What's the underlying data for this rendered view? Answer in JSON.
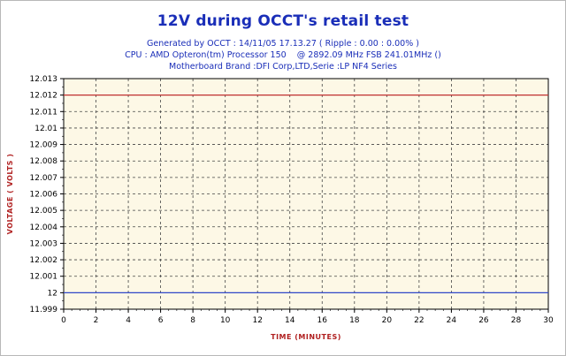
{
  "chart_data": {
    "type": "line",
    "title": "12V during OCCT's retail test",
    "subtitle_lines": [
      "Generated by OCCT : 14/11/05 17.13.27 ( Ripple : 0.00 : 0.00% )",
      "CPU : AMD Opteron(tm) Processor 150    @ 2892.09 MHz FSB 241.01MHz ()",
      "Motherboard Brand :DFI Corp,LTD,Serie :LP NF4 Series"
    ],
    "xlabel": "TIME (MINUTES)",
    "ylabel": "VOLTAGE ( VOLTS )",
    "xlim": [
      0,
      30
    ],
    "ylim": [
      11.999,
      12.013
    ],
    "x_ticks": [
      "0",
      "2",
      "4",
      "6",
      "8",
      "10",
      "12",
      "14",
      "16",
      "18",
      "20",
      "22",
      "24",
      "26",
      "28",
      "30"
    ],
    "y_ticks": [
      "11.999",
      "12",
      "12.001",
      "12.002",
      "12.003",
      "12.004",
      "12.005",
      "12.006",
      "12.007",
      "12.008",
      "12.009",
      "12.01",
      "12.011",
      "12.012",
      "12.013"
    ],
    "grid": true,
    "colors": {
      "title": "#1a2eb8",
      "axis_label": "#b02020",
      "plot_bg": "#fdf8e6",
      "grid": "#444444"
    },
    "series": [
      {
        "color": "#c03030",
        "x": [
          0,
          30
        ],
        "y": [
          12.012,
          12.012
        ]
      },
      {
        "color": "#3048c8",
        "x": [
          0,
          30
        ],
        "y": [
          12,
          12
        ]
      }
    ]
  }
}
